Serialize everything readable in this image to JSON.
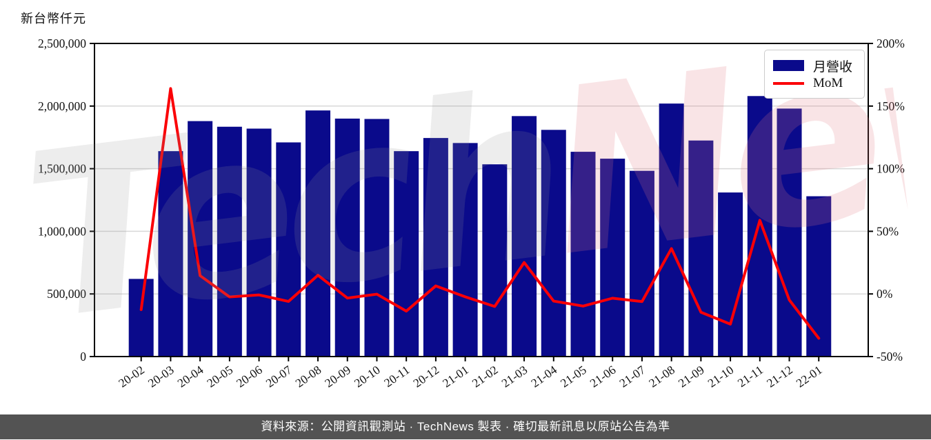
{
  "page": {
    "watermark": {
      "gray_part": "Tech",
      "pink_part": "News"
    },
    "footer_text": "資料來源：公開資訊觀測站 · TechNews 製表 · 確切最新訊息以原站公告為準"
  },
  "legend": {
    "items": [
      {
        "label": "月營收",
        "type": "bar"
      },
      {
        "label": "MoM",
        "type": "line"
      }
    ]
  },
  "colors": {
    "bar": "#0a0a8b",
    "line": "#fb0006",
    "grid": "#d8d8d8",
    "axis": "#000000",
    "text": "#111111",
    "legend_border": "#cccccc",
    "footer_bg": "#535353",
    "footer_text": "#ffffff",
    "watermark_gray": "rgba(150,150,150,0.17)",
    "watermark_pink": "rgba(226,122,132,0.20)"
  },
  "chart_data": {
    "type": "bar+line",
    "title": "",
    "ylabel": "新台幣仟元",
    "xlabel": "",
    "grid": true,
    "legend_position": "top-right",
    "categories": [
      "20-02",
      "20-03",
      "20-04",
      "20-05",
      "20-06",
      "20-07",
      "20-08",
      "20-09",
      "20-10",
      "20-11",
      "20-12",
      "21-01",
      "21-02",
      "21-03",
      "21-04",
      "21-05",
      "21-06",
      "21-07",
      "21-08",
      "21-09",
      "21-10",
      "21-11",
      "21-12",
      "22-01"
    ],
    "series": [
      {
        "name": "月營收",
        "type": "bar",
        "axis": "left",
        "unit": "新台幣仟元",
        "values": [
          620000,
          1640000,
          1880000,
          1835000,
          1820000,
          1710000,
          1965000,
          1900000,
          1897000,
          1640000,
          1745000,
          1705000,
          1535000,
          1920000,
          1810000,
          1635000,
          1580000,
          1483000,
          2020000,
          1725000,
          1310000,
          2080000,
          1980000,
          1280000
        ]
      },
      {
        "name": "MoM",
        "type": "line",
        "axis": "right",
        "unit": "%",
        "values": [
          -12.5,
          164,
          14.6,
          -2.4,
          -0.8,
          -6.0,
          14.9,
          -3.3,
          -0.2,
          -13.7,
          6.4,
          -2.3,
          -10.0,
          25.1,
          -5.7,
          -9.7,
          -3.4,
          -6.1,
          36.2,
          -14.6,
          -24.1,
          58.8,
          -4.8,
          -35.4
        ]
      }
    ],
    "left_axis": {
      "min": 0,
      "max": 2500000,
      "tick_labels": [
        "0",
        "500,000",
        "1,000,000",
        "1,500,000",
        "2,000,000",
        "2,500,000"
      ]
    },
    "right_axis": {
      "min": -50,
      "max": 200,
      "tick_labels": [
        "-50%",
        "0%",
        "50%",
        "100%",
        "150%",
        "200%"
      ]
    }
  }
}
